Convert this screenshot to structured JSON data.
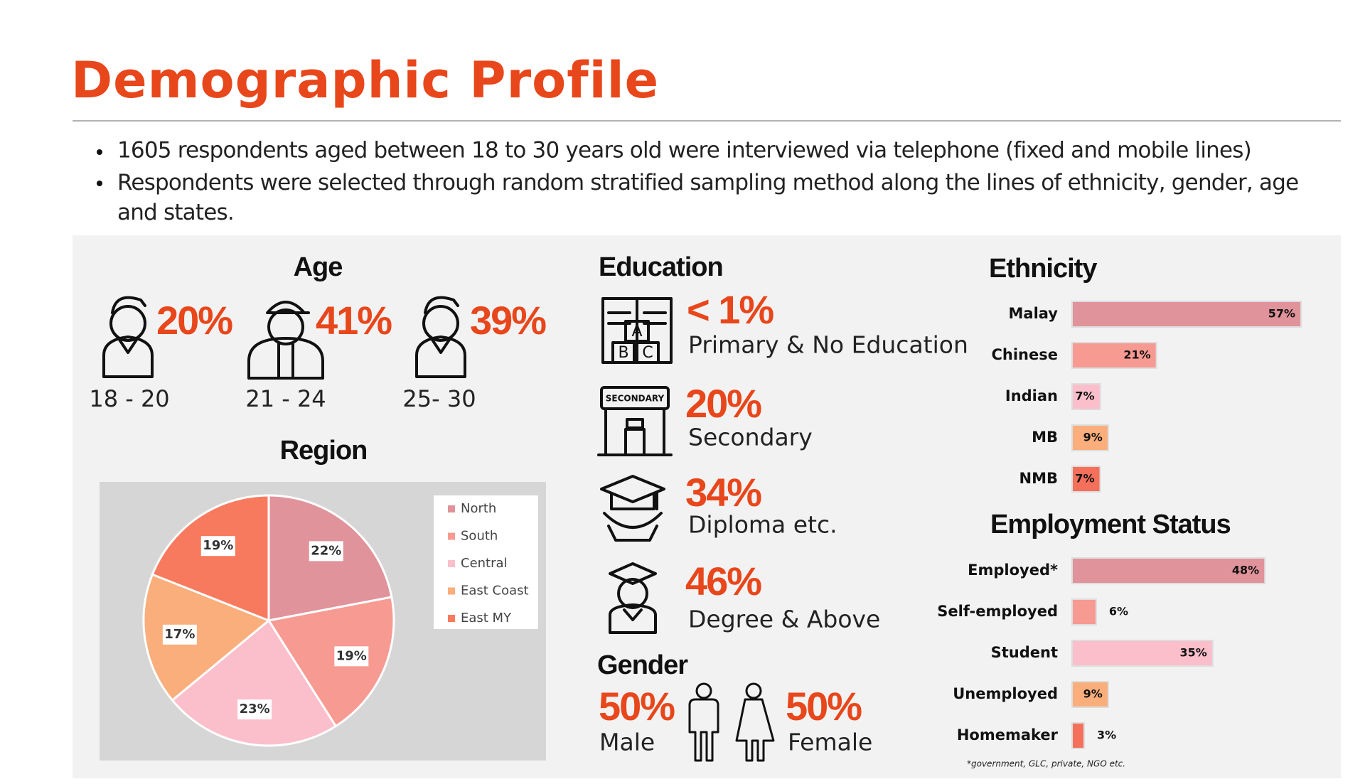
{
  "title": "Demographic Profile",
  "bullets": [
    "1605 respondents aged between 18 to 30 years old were interviewed via telephone (fixed and mobile lines)",
    "Respondents were selected through random stratified sampling method along the lines of ethnicity, gender, age and states."
  ],
  "age": {
    "title": "Age",
    "groups": [
      {
        "value": "20%",
        "label": "18 - 20"
      },
      {
        "value": "41%",
        "label": "21 - 24"
      },
      {
        "value": "39%",
        "label": "25- 30"
      }
    ]
  },
  "education": {
    "title": "Education",
    "items": [
      {
        "value": "< 1%",
        "label": "Primary & No Education"
      },
      {
        "value": "20%",
        "label": "Secondary"
      },
      {
        "value": "34%",
        "label": "Diploma etc."
      },
      {
        "value": "46%",
        "label": "Degree & Above"
      }
    ],
    "icon_text": "SECONDARY"
  },
  "gender": {
    "title": "Gender",
    "items": [
      {
        "value": "50%",
        "label": "Male"
      },
      {
        "value": "50%",
        "label": "Female"
      }
    ]
  },
  "chart_data": [
    {
      "type": "pie",
      "title": "Region",
      "categories": [
        "North",
        "South",
        "Central",
        "East Coast",
        "East MY"
      ],
      "values": [
        22,
        19,
        23,
        17,
        19
      ],
      "value_labels": [
        "22%",
        "19%",
        "23%",
        "17%",
        "19%"
      ],
      "colors": [
        "#e0939a",
        "#f79a92",
        "#fbbfcb",
        "#f9ae7b",
        "#f87a5e"
      ],
      "legend": "right"
    },
    {
      "type": "hbar",
      "title": "Ethnicity",
      "categories": [
        "Malay",
        "Chinese",
        "Indian",
        "MB",
        "NMB"
      ],
      "values": [
        57,
        21,
        7,
        9,
        7
      ],
      "value_labels": [
        "57%",
        "21%",
        "7%",
        "9%",
        "7%"
      ],
      "colors": [
        "#e0939a",
        "#f79a92",
        "#fbbfcb",
        "#f9ae7b",
        "#f4705a"
      ]
    },
    {
      "type": "hbar",
      "title": "Employment Status",
      "categories": [
        "Employed*",
        "Self-employed",
        "Student",
        "Unemployed",
        "Homemaker"
      ],
      "values": [
        48,
        6,
        35,
        9,
        3
      ],
      "value_labels": [
        "48%",
        "6%",
        "35%",
        "9%",
        "3%"
      ],
      "colors": [
        "#e0939a",
        "#f79a92",
        "#fbbfcb",
        "#f9ae7b",
        "#f4705a"
      ],
      "footnote": "*government, GLC, private, NGO etc."
    }
  ]
}
